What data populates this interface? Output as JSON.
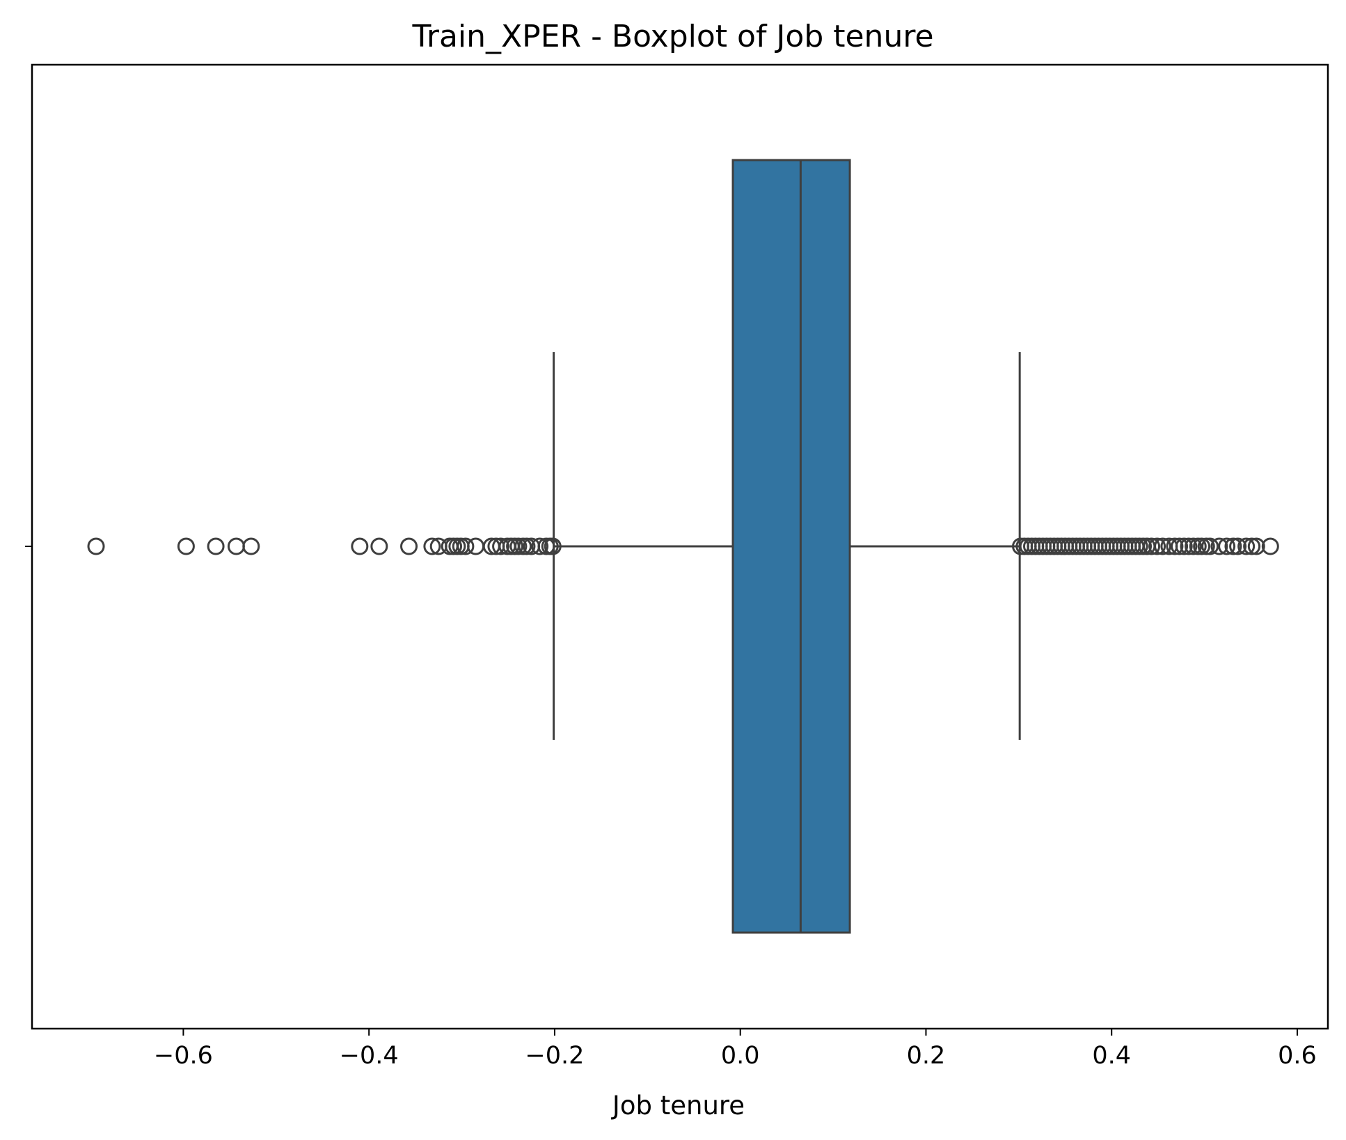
{
  "chart_data": {
    "type": "boxplot",
    "orientation": "horizontal",
    "title": "Train_XPER - Boxplot of Job tenure",
    "xlabel": "Job tenure",
    "ylabel": "",
    "xlim": [
      -0.763,
      0.633
    ],
    "xticks": [
      -0.6,
      -0.4,
      -0.2,
      0.0,
      0.2,
      0.4,
      0.6
    ],
    "xtick_labels": [
      "−0.6",
      "−0.4",
      "−0.2",
      "0.0",
      "0.2",
      "0.4",
      "0.6"
    ],
    "grid": false,
    "box": {
      "whisker_low": -0.201,
      "q1": -0.008,
      "median": 0.065,
      "q3": 0.118,
      "whisker_high": 0.301
    },
    "outliers_low": [
      -0.694,
      -0.597,
      -0.565,
      -0.543,
      -0.527,
      -0.41,
      -0.389,
      -0.357,
      -0.332,
      -0.325,
      -0.313,
      -0.309,
      -0.305,
      -0.301,
      -0.296,
      -0.285,
      -0.268,
      -0.263,
      -0.258,
      -0.251,
      -0.247,
      -0.243,
      -0.239,
      -0.234,
      -0.23,
      -0.225,
      -0.216,
      -0.209,
      -0.205,
      -0.202
    ],
    "outliers_high": [
      0.302,
      0.306,
      0.31,
      0.314,
      0.318,
      0.322,
      0.326,
      0.33,
      0.334,
      0.338,
      0.342,
      0.346,
      0.35,
      0.354,
      0.358,
      0.362,
      0.366,
      0.37,
      0.374,
      0.378,
      0.382,
      0.386,
      0.39,
      0.394,
      0.398,
      0.402,
      0.406,
      0.41,
      0.414,
      0.418,
      0.422,
      0.426,
      0.43,
      0.434,
      0.438,
      0.443,
      0.449,
      0.455,
      0.462,
      0.468,
      0.473,
      0.478,
      0.483,
      0.488,
      0.493,
      0.497,
      0.502,
      0.506,
      0.516,
      0.524,
      0.531,
      0.536,
      0.545,
      0.551,
      0.556,
      0.571
    ],
    "colors": {
      "box_fill": "#3274a1",
      "line": "#3f3f3f"
    }
  }
}
